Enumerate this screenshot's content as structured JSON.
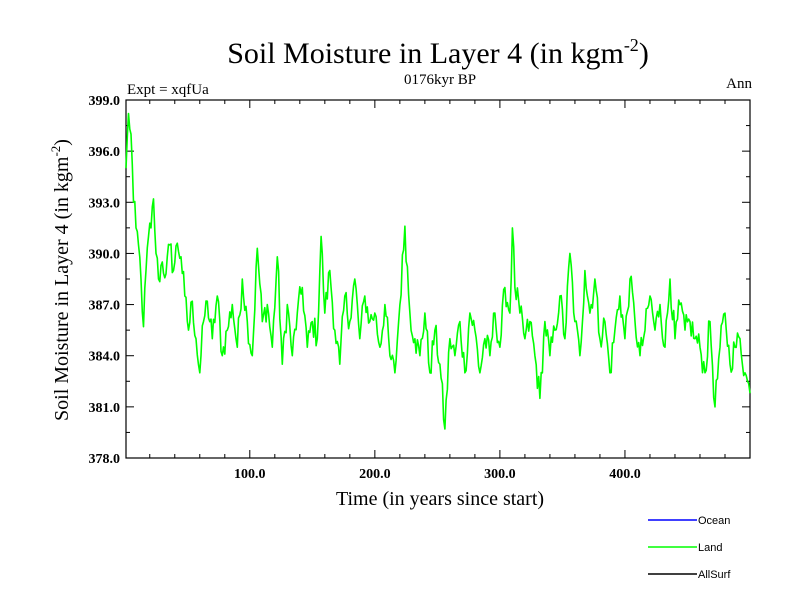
{
  "chart_data": {
    "type": "line",
    "title_main": "Soil Moisture in Layer 4 (in kgm",
    "title_sup": "-2",
    "title_close": ")",
    "subtitle_left": "Expt = xqfUa",
    "subtitle_center": "0176kyr BP",
    "subtitle_right": "Ann",
    "xlabel": "Time (in years since start)",
    "ylabel_main": "Soil Moisture in Layer 4 (in kgm",
    "ylabel_sup": "-2",
    "ylabel_close": ")",
    "xlim": [
      1,
      500
    ],
    "ylim": [
      378.0,
      399.0
    ],
    "x_ticks": [
      100,
      200,
      300,
      400
    ],
    "x_tick_labels": [
      "100.0",
      "200.0",
      "300.0",
      "400.0"
    ],
    "y_ticks": [
      378,
      381,
      384,
      387,
      390,
      393,
      396,
      399
    ],
    "y_tick_labels": [
      "378.0",
      "381.0",
      "384.0",
      "387.0",
      "390.0",
      "393.0",
      "396.0",
      "399.0"
    ],
    "legend": [
      {
        "name": "Ocean",
        "color": "#0000ff"
      },
      {
        "name": "Land",
        "color": "#00ff00"
      },
      {
        "name": "AllSurf",
        "color": "#000000"
      }
    ],
    "series": [
      {
        "name": "Land",
        "color": "#00ff00",
        "x_start": 1,
        "x_end": 500,
        "keypoints": [
          [
            1,
            395.0
          ],
          [
            3,
            398.2
          ],
          [
            5,
            397.0
          ],
          [
            7,
            393.0
          ],
          [
            9,
            391.5
          ],
          [
            11,
            390.5
          ],
          [
            13,
            388.5
          ],
          [
            15,
            385.7
          ],
          [
            17,
            389.0
          ],
          [
            19,
            391.0
          ],
          [
            21,
            391.5
          ],
          [
            23,
            393.2
          ],
          [
            25,
            390.0
          ],
          [
            27,
            388.5
          ],
          [
            30,
            389.5
          ],
          [
            33,
            388.8
          ],
          [
            36,
            390.5
          ],
          [
            39,
            389.0
          ],
          [
            42,
            390.6
          ],
          [
            45,
            389.8
          ],
          [
            48,
            387.5
          ],
          [
            51,
            385.5
          ],
          [
            54,
            387.2
          ],
          [
            57,
            385.0
          ],
          [
            60,
            383.0
          ],
          [
            63,
            386.0
          ],
          [
            66,
            387.2
          ],
          [
            70,
            385.0
          ],
          [
            74,
            387.5
          ],
          [
            78,
            384.0
          ],
          [
            82,
            385.5
          ],
          [
            86,
            387.0
          ],
          [
            90,
            384.5
          ],
          [
            94,
            388.5
          ],
          [
            98,
            386.0
          ],
          [
            102,
            384.0
          ],
          [
            106,
            390.3
          ],
          [
            110,
            386.0
          ],
          [
            114,
            387.0
          ],
          [
            118,
            384.5
          ],
          [
            122,
            389.8
          ],
          [
            126,
            383.5
          ],
          [
            130,
            387.0
          ],
          [
            134,
            384.0
          ],
          [
            138,
            386.5
          ],
          [
            142,
            388.0
          ],
          [
            146,
            384.5
          ],
          [
            150,
            386.0
          ],
          [
            154,
            385.0
          ],
          [
            157,
            391.0
          ],
          [
            160,
            386.5
          ],
          [
            164,
            389.0
          ],
          [
            168,
            385.5
          ],
          [
            172,
            383.5
          ],
          [
            176,
            387.5
          ],
          [
            180,
            386.0
          ],
          [
            184,
            388.5
          ],
          [
            188,
            385.0
          ],
          [
            192,
            387.5
          ],
          [
            196,
            386.0
          ],
          [
            200,
            386.5
          ],
          [
            204,
            384.5
          ],
          [
            208,
            387.0
          ],
          [
            212,
            384.0
          ],
          [
            216,
            383.0
          ],
          [
            220,
            387.0
          ],
          [
            224,
            391.6
          ],
          [
            228,
            386.5
          ],
          [
            232,
            385.0
          ],
          [
            236,
            384.0
          ],
          [
            240,
            386.5
          ],
          [
            244,
            383.0
          ],
          [
            248,
            385.5
          ],
          [
            252,
            383.5
          ],
          [
            256,
            379.7
          ],
          [
            260,
            385.0
          ],
          [
            264,
            384.0
          ],
          [
            268,
            386.0
          ],
          [
            272,
            383.0
          ],
          [
            276,
            386.5
          ],
          [
            280,
            385.5
          ],
          [
            284,
            383.0
          ],
          [
            288,
            385.0
          ],
          [
            292,
            384.0
          ],
          [
            296,
            386.5
          ],
          [
            300,
            384.5
          ],
          [
            304,
            388.0
          ],
          [
            308,
            386.5
          ],
          [
            310,
            391.5
          ],
          [
            312,
            388.0
          ],
          [
            316,
            386.5
          ],
          [
            320,
            385.0
          ],
          [
            324,
            386.0
          ],
          [
            328,
            384.0
          ],
          [
            332,
            381.5
          ],
          [
            336,
            386.0
          ],
          [
            340,
            384.0
          ],
          [
            344,
            385.5
          ],
          [
            348,
            387.5
          ],
          [
            352,
            385.0
          ],
          [
            356,
            390.0
          ],
          [
            360,
            386.0
          ],
          [
            364,
            384.0
          ],
          [
            368,
            389.0
          ],
          [
            372,
            386.5
          ],
          [
            376,
            388.5
          ],
          [
            380,
            385.0
          ],
          [
            384,
            386.0
          ],
          [
            388,
            383.0
          ],
          [
            392,
            385.5
          ],
          [
            396,
            387.5
          ],
          [
            400,
            385.0
          ],
          [
            404,
            388.5
          ],
          [
            408,
            386.0
          ],
          [
            412,
            384.0
          ],
          [
            416,
            385.5
          ],
          [
            420,
            387.5
          ],
          [
            424,
            385.5
          ],
          [
            428,
            387.0
          ],
          [
            432,
            384.5
          ],
          [
            436,
            388.5
          ],
          [
            440,
            385.0
          ],
          [
            444,
            387.0
          ],
          [
            448,
            385.5
          ],
          [
            452,
            386.0
          ],
          [
            456,
            385.0
          ],
          [
            460,
            384.5
          ],
          [
            464,
            383.0
          ],
          [
            468,
            386.0
          ],
          [
            472,
            381.0
          ],
          [
            476,
            384.5
          ],
          [
            480,
            386.5
          ],
          [
            484,
            383.5
          ],
          [
            488,
            384.5
          ],
          [
            492,
            385.0
          ],
          [
            496,
            383.0
          ],
          [
            500,
            381.8
          ]
        ]
      }
    ]
  }
}
